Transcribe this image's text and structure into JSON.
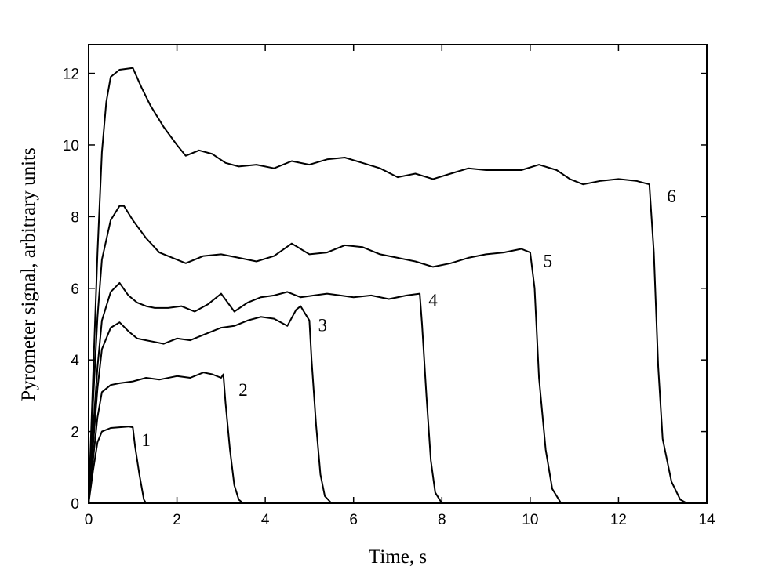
{
  "chart_data": {
    "type": "line",
    "title": "",
    "xlabel": "Time, s",
    "ylabel": "Pyrometer signal, arbitrary units",
    "xlim": [
      0,
      14
    ],
    "ylim": [
      0,
      12.8
    ],
    "xticks": [
      0,
      2,
      4,
      6,
      8,
      10,
      12,
      14
    ],
    "yticks": [
      0,
      2,
      4,
      6,
      8,
      10,
      12
    ],
    "grid": false,
    "legend": "none",
    "series": [
      {
        "name": "1",
        "points": [
          [
            0,
            0
          ],
          [
            0.1,
            0.9
          ],
          [
            0.2,
            1.7
          ],
          [
            0.3,
            2.0
          ],
          [
            0.5,
            2.1
          ],
          [
            0.7,
            2.12
          ],
          [
            0.9,
            2.14
          ],
          [
            1.0,
            2.12
          ],
          [
            1.05,
            1.6
          ],
          [
            1.15,
            0.8
          ],
          [
            1.25,
            0.1
          ],
          [
            1.3,
            0.0
          ]
        ]
      },
      {
        "name": "2",
        "points": [
          [
            0,
            0
          ],
          [
            0.1,
            1.2
          ],
          [
            0.2,
            2.4
          ],
          [
            0.3,
            3.1
          ],
          [
            0.5,
            3.3
          ],
          [
            0.7,
            3.35
          ],
          [
            1.0,
            3.4
          ],
          [
            1.3,
            3.5
          ],
          [
            1.6,
            3.45
          ],
          [
            2.0,
            3.55
          ],
          [
            2.3,
            3.5
          ],
          [
            2.6,
            3.65
          ],
          [
            2.8,
            3.6
          ],
          [
            3.0,
            3.5
          ],
          [
            3.05,
            3.6
          ],
          [
            3.1,
            2.8
          ],
          [
            3.2,
            1.5
          ],
          [
            3.3,
            0.5
          ],
          [
            3.4,
            0.1
          ],
          [
            3.5,
            0.0
          ]
        ]
      },
      {
        "name": "3",
        "points": [
          [
            0,
            0
          ],
          [
            0.1,
            1.6
          ],
          [
            0.2,
            3.2
          ],
          [
            0.3,
            4.3
          ],
          [
            0.5,
            4.9
          ],
          [
            0.7,
            5.05
          ],
          [
            0.9,
            4.8
          ],
          [
            1.1,
            4.6
          ],
          [
            1.3,
            4.55
          ],
          [
            1.5,
            4.5
          ],
          [
            1.7,
            4.45
          ],
          [
            2.0,
            4.6
          ],
          [
            2.3,
            4.55
          ],
          [
            2.6,
            4.7
          ],
          [
            3.0,
            4.9
          ],
          [
            3.3,
            4.95
          ],
          [
            3.6,
            5.1
          ],
          [
            3.9,
            5.2
          ],
          [
            4.2,
            5.15
          ],
          [
            4.5,
            4.95
          ],
          [
            4.7,
            5.4
          ],
          [
            4.8,
            5.5
          ],
          [
            4.9,
            5.3
          ],
          [
            5.0,
            5.1
          ],
          [
            5.05,
            4.0
          ],
          [
            5.15,
            2.2
          ],
          [
            5.25,
            0.8
          ],
          [
            5.35,
            0.2
          ],
          [
            5.5,
            0.0
          ]
        ]
      },
      {
        "name": "4",
        "points": [
          [
            0,
            0
          ],
          [
            0.1,
            2.0
          ],
          [
            0.2,
            3.8
          ],
          [
            0.3,
            5.1
          ],
          [
            0.5,
            5.9
          ],
          [
            0.7,
            6.15
          ],
          [
            0.9,
            5.8
          ],
          [
            1.1,
            5.6
          ],
          [
            1.3,
            5.5
          ],
          [
            1.5,
            5.45
          ],
          [
            1.8,
            5.45
          ],
          [
            2.1,
            5.5
          ],
          [
            2.4,
            5.35
          ],
          [
            2.7,
            5.55
          ],
          [
            3.0,
            5.85
          ],
          [
            3.3,
            5.35
          ],
          [
            3.6,
            5.6
          ],
          [
            3.9,
            5.75
          ],
          [
            4.2,
            5.8
          ],
          [
            4.5,
            5.9
          ],
          [
            4.8,
            5.75
          ],
          [
            5.1,
            5.8
          ],
          [
            5.4,
            5.85
          ],
          [
            5.7,
            5.8
          ],
          [
            6.0,
            5.75
          ],
          [
            6.4,
            5.8
          ],
          [
            6.8,
            5.7
          ],
          [
            7.2,
            5.8
          ],
          [
            7.5,
            5.85
          ],
          [
            7.55,
            5.0
          ],
          [
            7.65,
            3.0
          ],
          [
            7.75,
            1.2
          ],
          [
            7.85,
            0.3
          ],
          [
            8.0,
            0.0
          ]
        ]
      },
      {
        "name": "5",
        "points": [
          [
            0,
            0
          ],
          [
            0.1,
            2.8
          ],
          [
            0.2,
            5.2
          ],
          [
            0.3,
            6.8
          ],
          [
            0.5,
            7.9
          ],
          [
            0.7,
            8.3
          ],
          [
            0.8,
            8.3
          ],
          [
            1.0,
            7.9
          ],
          [
            1.3,
            7.4
          ],
          [
            1.6,
            7.0
          ],
          [
            1.9,
            6.85
          ],
          [
            2.2,
            6.7
          ],
          [
            2.6,
            6.9
          ],
          [
            3.0,
            6.95
          ],
          [
            3.4,
            6.85
          ],
          [
            3.8,
            6.75
          ],
          [
            4.2,
            6.9
          ],
          [
            4.6,
            7.25
          ],
          [
            5.0,
            6.95
          ],
          [
            5.4,
            7.0
          ],
          [
            5.8,
            7.2
          ],
          [
            6.2,
            7.15
          ],
          [
            6.6,
            6.95
          ],
          [
            7.0,
            6.85
          ],
          [
            7.4,
            6.75
          ],
          [
            7.8,
            6.6
          ],
          [
            8.2,
            6.7
          ],
          [
            8.6,
            6.85
          ],
          [
            9.0,
            6.95
          ],
          [
            9.4,
            7.0
          ],
          [
            9.8,
            7.1
          ],
          [
            10.0,
            7.0
          ],
          [
            10.1,
            6.0
          ],
          [
            10.2,
            3.5
          ],
          [
            10.35,
            1.5
          ],
          [
            10.5,
            0.4
          ],
          [
            10.7,
            0.0
          ]
        ]
      },
      {
        "name": "6",
        "points": [
          [
            0,
            0
          ],
          [
            0.1,
            3.5
          ],
          [
            0.2,
            7.0
          ],
          [
            0.3,
            9.8
          ],
          [
            0.4,
            11.2
          ],
          [
            0.5,
            11.9
          ],
          [
            0.7,
            12.1
          ],
          [
            1.0,
            12.15
          ],
          [
            1.2,
            11.6
          ],
          [
            1.4,
            11.1
          ],
          [
            1.7,
            10.5
          ],
          [
            2.0,
            10.0
          ],
          [
            2.2,
            9.7
          ],
          [
            2.5,
            9.85
          ],
          [
            2.8,
            9.75
          ],
          [
            3.1,
            9.5
          ],
          [
            3.4,
            9.4
          ],
          [
            3.8,
            9.45
          ],
          [
            4.2,
            9.35
          ],
          [
            4.6,
            9.55
          ],
          [
            5.0,
            9.45
          ],
          [
            5.4,
            9.6
          ],
          [
            5.8,
            9.65
          ],
          [
            6.2,
            9.5
          ],
          [
            6.6,
            9.35
          ],
          [
            7.0,
            9.1
          ],
          [
            7.4,
            9.2
          ],
          [
            7.8,
            9.05
          ],
          [
            8.2,
            9.2
          ],
          [
            8.6,
            9.35
          ],
          [
            9.0,
            9.3
          ],
          [
            9.4,
            9.3
          ],
          [
            9.8,
            9.3
          ],
          [
            10.2,
            9.45
          ],
          [
            10.6,
            9.3
          ],
          [
            10.9,
            9.05
          ],
          [
            11.2,
            8.9
          ],
          [
            11.6,
            9.0
          ],
          [
            12.0,
            9.05
          ],
          [
            12.4,
            9.0
          ],
          [
            12.7,
            8.9
          ],
          [
            12.8,
            7.0
          ],
          [
            12.9,
            3.8
          ],
          [
            13.0,
            1.8
          ],
          [
            13.2,
            0.6
          ],
          [
            13.4,
            0.1
          ],
          [
            13.55,
            0.0
          ]
        ]
      }
    ],
    "curve_labels": [
      {
        "text": "1",
        "x": 1.3,
        "y": 1.6
      },
      {
        "text": "2",
        "x": 3.5,
        "y": 3.0
      },
      {
        "text": "3",
        "x": 5.3,
        "y": 4.8
      },
      {
        "text": "4",
        "x": 7.8,
        "y": 5.5
      },
      {
        "text": "5",
        "x": 10.4,
        "y": 6.6
      },
      {
        "text": "6",
        "x": 13.2,
        "y": 8.4
      }
    ]
  }
}
